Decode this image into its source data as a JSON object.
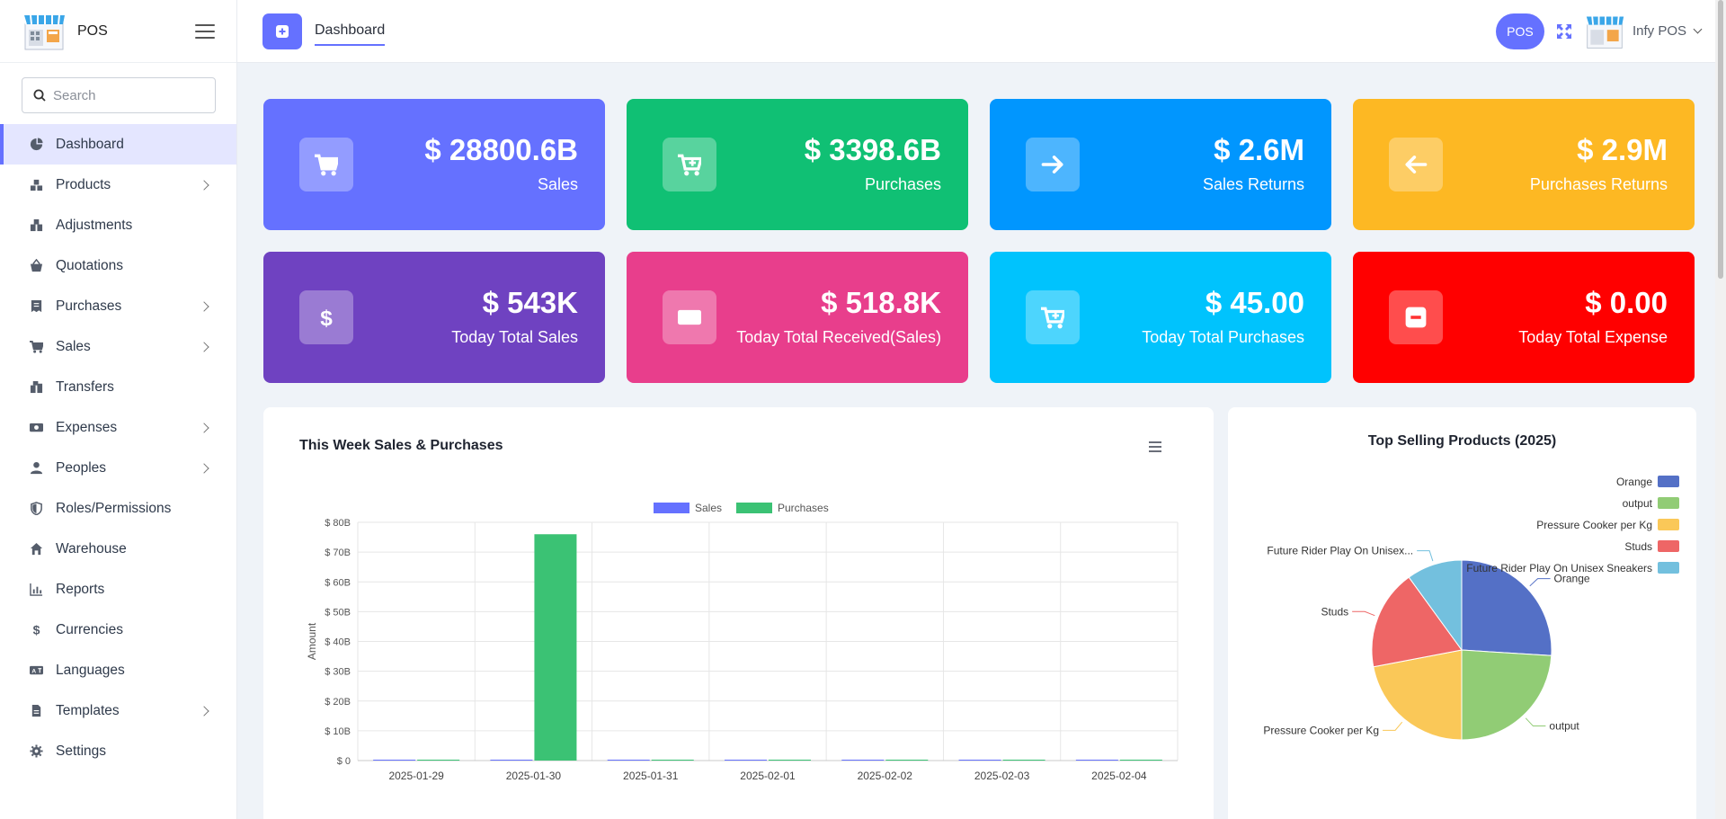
{
  "app": {
    "name": "POS"
  },
  "sidebar": {
    "search_placeholder": "Search",
    "items": [
      {
        "label": "Dashboard",
        "icon": "dashboard-icon",
        "active": true,
        "has_children": false
      },
      {
        "label": "Products",
        "icon": "products-icon",
        "has_children": true
      },
      {
        "label": "Adjustments",
        "icon": "adjustments-icon",
        "has_children": false
      },
      {
        "label": "Quotations",
        "icon": "basket-icon",
        "has_children": false
      },
      {
        "label": "Purchases",
        "icon": "receipt-icon",
        "has_children": true
      },
      {
        "label": "Sales",
        "icon": "cart-icon",
        "has_children": true
      },
      {
        "label": "Transfers",
        "icon": "transfers-icon",
        "has_children": false
      },
      {
        "label": "Expenses",
        "icon": "money-icon",
        "has_children": true
      },
      {
        "label": "Peoples",
        "icon": "person-icon",
        "has_children": true
      },
      {
        "label": "Roles/Permissions",
        "icon": "shield-icon",
        "has_children": false
      },
      {
        "label": "Warehouse",
        "icon": "home-icon",
        "has_children": false
      },
      {
        "label": "Reports",
        "icon": "chart-icon",
        "has_children": false
      },
      {
        "label": "Currencies",
        "icon": "dollar-icon",
        "has_children": false
      },
      {
        "label": "Languages",
        "icon": "language-icon",
        "has_children": false
      },
      {
        "label": "Templates",
        "icon": "file-icon",
        "has_children": true
      },
      {
        "label": "Settings",
        "icon": "gear-icon",
        "has_children": false
      }
    ]
  },
  "header": {
    "tab_label": "Dashboard",
    "pos_button": "POS",
    "user_name": "Infy POS"
  },
  "cards": [
    {
      "value": "$ 28800.6B",
      "label": "Sales",
      "color": "#6571ff",
      "icon": "cart-icon"
    },
    {
      "value": "$ 3398.6B",
      "label": "Purchases",
      "color": "#10c074",
      "icon": "cart-plus-icon"
    },
    {
      "value": "$ 2.6M",
      "label": "Sales Returns",
      "color": "#0196fe",
      "icon": "arrow-right-icon"
    },
    {
      "value": "$ 2.9M",
      "label": "Purchases Returns",
      "color": "#fdb823",
      "icon": "arrow-left-icon"
    },
    {
      "value": "$ 543K",
      "label": "Today Total Sales",
      "color": "#6f42c1",
      "icon": "dollar-icon"
    },
    {
      "value": "$ 518.8K",
      "label": "Today Total Received(Sales)",
      "color": "#e83e8c",
      "icon": "money-icon"
    },
    {
      "value": "$ 45.00",
      "label": "Today Total Purchases",
      "color": "#00c3fd",
      "icon": "cart-plus-icon"
    },
    {
      "value": "$ 0.00",
      "label": "Today Total Expense",
      "color": "#ff0000",
      "icon": "minus-icon"
    }
  ],
  "weekly_chart": {
    "title": "This Week Sales & Purchases"
  },
  "top_chart": {
    "title": "Top Selling Products (2025)"
  },
  "chart_data": [
    {
      "type": "bar",
      "title": "This Week Sales & Purchases",
      "xlabel": "",
      "ylabel": "Amount",
      "ylim": [
        0,
        80
      ],
      "y_unit": "B",
      "yticks": [
        "$ 0",
        "$ 10B",
        "$ 20B",
        "$ 30B",
        "$ 40B",
        "$ 50B",
        "$ 60B",
        "$ 70B",
        "$ 80B"
      ],
      "categories": [
        "2025-01-29",
        "2025-01-30",
        "2025-01-31",
        "2025-02-01",
        "2025-02-02",
        "2025-02-03",
        "2025-02-04"
      ],
      "series": [
        {
          "name": "Sales",
          "color": "#6571ff",
          "values": [
            0,
            0,
            0,
            0,
            0,
            0,
            0
          ]
        },
        {
          "name": "Purchases",
          "color": "#3bc274",
          "values": [
            0,
            76,
            0,
            0,
            0,
            0,
            0
          ]
        }
      ],
      "legend": "top-center",
      "grid": true
    },
    {
      "type": "pie",
      "title": "Top Selling Products (2025)",
      "legend": "top-right",
      "slices": [
        {
          "name": "Orange",
          "label": "Orange",
          "value": 26,
          "color": "#5470c6"
        },
        {
          "name": "output",
          "label": "output",
          "value": 24,
          "color": "#91cc75"
        },
        {
          "name": "Pressure Cooker per Kg",
          "label": "Pressure Cooker per Kg",
          "value": 22,
          "color": "#fac858"
        },
        {
          "name": "Studs",
          "label": "Studs",
          "value": 18,
          "color": "#ee6666"
        },
        {
          "name": "Future Rider Play On Unisex Sneakers",
          "label": "Future Rider Play On Unisex...",
          "value": 10,
          "color": "#73c0de"
        }
      ]
    }
  ]
}
